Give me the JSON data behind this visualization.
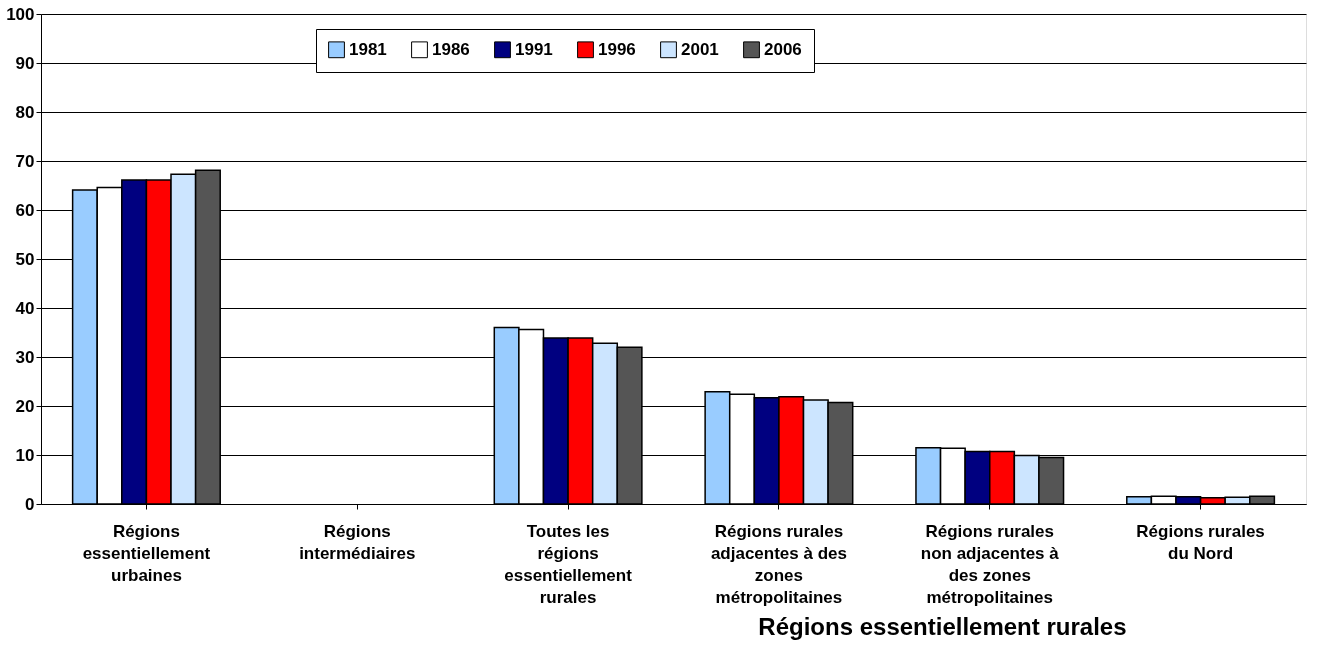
{
  "chart_data": {
    "type": "bar",
    "categories": [
      "Régions essentiellement urbaines",
      "Régions intermédiaires",
      "Toutes les régions essentiellement rurales",
      "Régions rurales adjacentes à des zones métropolitaines",
      "Régions rurales non adjacentes à des zones métropolitaines",
      "Régions rurales du Nord"
    ],
    "xlabel": "Régions essentiellement rurales",
    "series": [
      {
        "name": "1981",
        "color": "#99ccff",
        "values": [
          64.1,
          null,
          36.0,
          22.9,
          11.5,
          1.5
        ]
      },
      {
        "name": "1986",
        "color": "#ffffff",
        "values": [
          64.6,
          null,
          35.6,
          22.4,
          11.4,
          1.6
        ]
      },
      {
        "name": "1991",
        "color": "#000080",
        "values": [
          66.1,
          null,
          33.9,
          21.7,
          10.7,
          1.5
        ]
      },
      {
        "name": "1996",
        "color": "#ff0000",
        "values": [
          66.1,
          null,
          33.9,
          21.9,
          10.7,
          1.3
        ]
      },
      {
        "name": "2001",
        "color": "#cce5ff",
        "values": [
          67.3,
          null,
          32.8,
          21.2,
          9.9,
          1.4
        ]
      },
      {
        "name": "2006",
        "color": "#555555",
        "values": [
          68.1,
          null,
          32.0,
          20.7,
          9.5,
          1.6
        ]
      }
    ],
    "ylim": [
      0,
      100
    ],
    "yticks": [
      0,
      10,
      20,
      30,
      40,
      50,
      60,
      70,
      80,
      90,
      100
    ],
    "grid": "y",
    "legend": "top"
  }
}
